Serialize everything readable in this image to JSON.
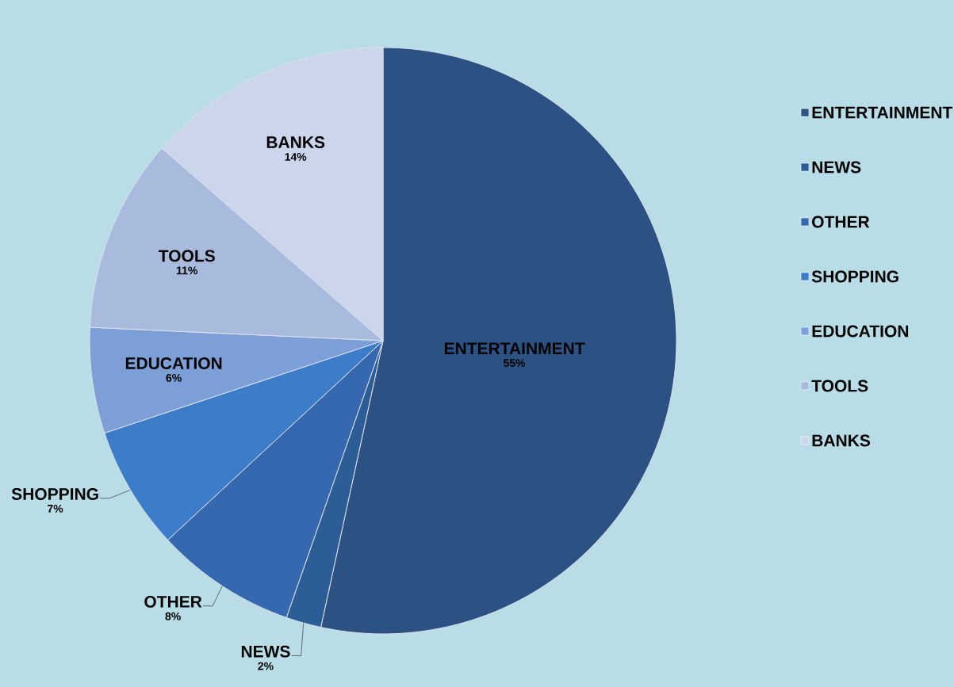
{
  "chart_data": {
    "type": "pie",
    "categories": [
      "ENTERTAINMENT",
      "NEWS",
      "OTHER",
      "SHOPPING",
      "EDUCATION",
      "TOOLS",
      "BANKS"
    ],
    "values": [
      55,
      2,
      8,
      7,
      6,
      11,
      14
    ],
    "value_labels": [
      "55%",
      "2%",
      "8%",
      "7%",
      "6%",
      "11%",
      "14%"
    ],
    "colors": [
      "#2b5283",
      "#2d5d96",
      "#3568ae",
      "#3d7cc9",
      "#7b9fd6",
      "#a9bbdc",
      "#cbd6ec"
    ],
    "legend": "right"
  }
}
